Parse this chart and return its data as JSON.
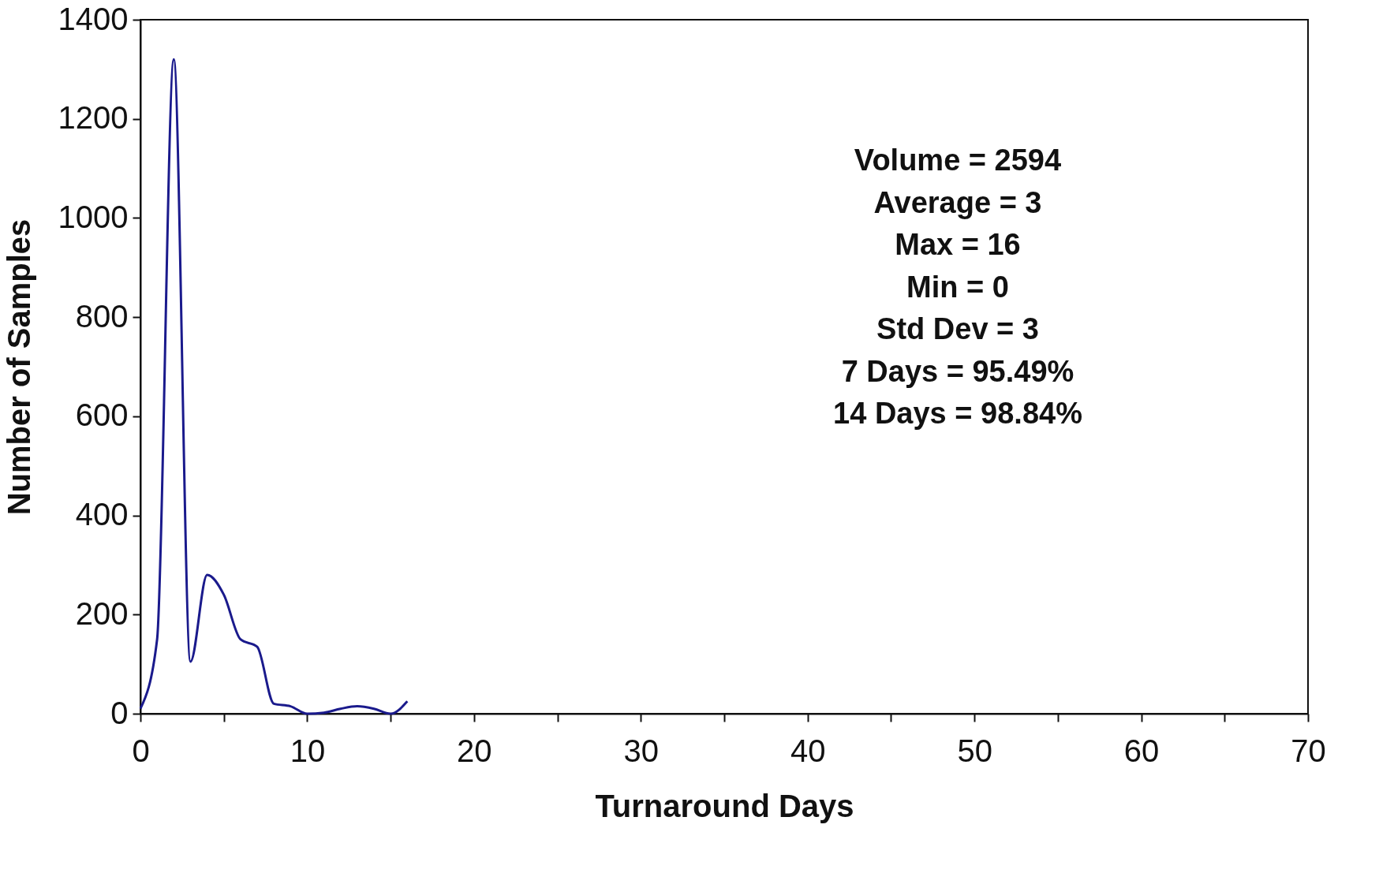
{
  "chart_data": {
    "type": "line",
    "xlabel": "Turnaround Days",
    "ylabel": "Number of Samples",
    "x": [
      0,
      1,
      2,
      3,
      4,
      5,
      6,
      7,
      8,
      9,
      10,
      11,
      12,
      13,
      14,
      15,
      16
    ],
    "series": [
      {
        "color": "#1a1a8c",
        "values": [
          10,
          150,
          1320,
          105,
          280,
          240,
          150,
          135,
          20,
          15,
          0,
          2,
          10,
          15,
          10,
          0,
          25
        ]
      }
    ],
    "xlim": [
      0,
      70
    ],
    "ylim": [
      0,
      1400
    ],
    "xticks": [
      0,
      {
        "value": 5,
        "label": null
      },
      10,
      {
        "value": 15,
        "label": null
      },
      20,
      {
        "value": 25,
        "label": null
      },
      30,
      {
        "value": 35,
        "label": null
      },
      40,
      {
        "value": 45,
        "label": null
      },
      50,
      {
        "value": 55,
        "label": null
      },
      60,
      {
        "value": 65,
        "label": null
      },
      70
    ],
    "yticks": [
      0,
      200,
      400,
      600,
      800,
      1000,
      1200,
      1400
    ],
    "annotations": [
      "Volume = 2594",
      "Average = 3",
      "Max = 16",
      "Min = 0",
      "Std Dev = 3",
      "7 Days = 95.49%",
      "14 Days = 98.84%"
    ],
    "grid": false,
    "marker": "none",
    "line_style": "solid"
  }
}
